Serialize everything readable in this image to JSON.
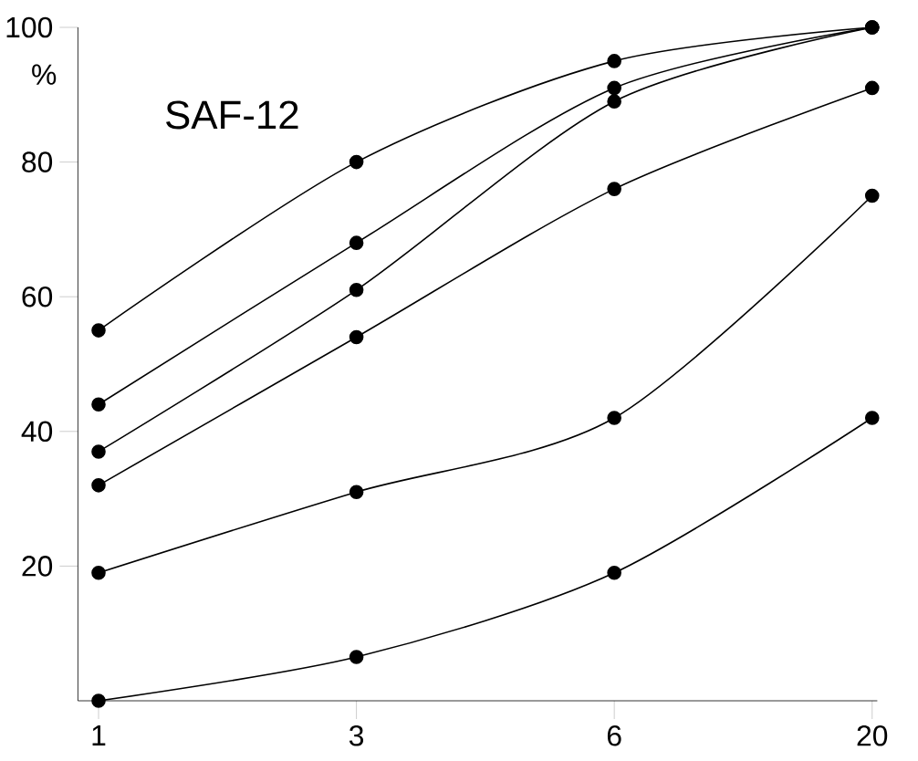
{
  "chart_data": {
    "type": "line",
    "ylabel": "%",
    "annotations": [
      "SAF-12"
    ],
    "categories": [
      "1",
      "3",
      "6",
      "20"
    ],
    "series": [
      {
        "color": "#000000",
        "values": [
          55,
          80,
          95,
          100
        ]
      },
      {
        "color": "#000000",
        "values": [
          44,
          68,
          91,
          100
        ]
      },
      {
        "color": "#000000",
        "values": [
          37,
          61,
          89,
          100
        ]
      },
      {
        "color": "#000000",
        "values": [
          32,
          54,
          76,
          91
        ]
      },
      {
        "color": "#000000",
        "values": [
          19,
          31,
          42,
          75
        ]
      },
      {
        "color": "#000000",
        "values": [
          0,
          6.5,
          19,
          42
        ]
      }
    ],
    "ylim": [
      0,
      100
    ],
    "yticks": [
      20,
      40,
      60,
      80,
      100
    ],
    "marker": "circle",
    "line_style": "solid"
  }
}
